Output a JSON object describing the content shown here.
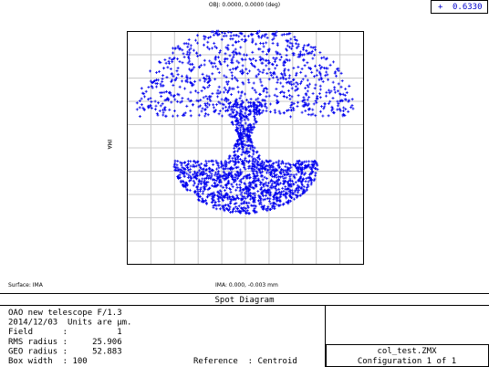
{
  "header": {
    "object": "OBJ: 0.0000, 0.0000 (deg)",
    "wavelength": "0.6330"
  },
  "plot": {
    "side_label": "IMA",
    "surface": "Surface: IMA",
    "image_position": "IMA: 0.000, -0.003 mm"
  },
  "title": "Spot Diagram",
  "info": {
    "lines": [
      "OAO new telescope F/1.3",
      "2014/12/03  Units are µm.",
      "Field      :          1",
      "RMS radius :     25.906",
      "GEO radius :     52.883",
      "Box width  : 100"
    ],
    "reference": "Reference  : Centroid"
  },
  "file": {
    "name": "col_test.ZMX",
    "configuration": "Configuration 1 of 1"
  }
}
